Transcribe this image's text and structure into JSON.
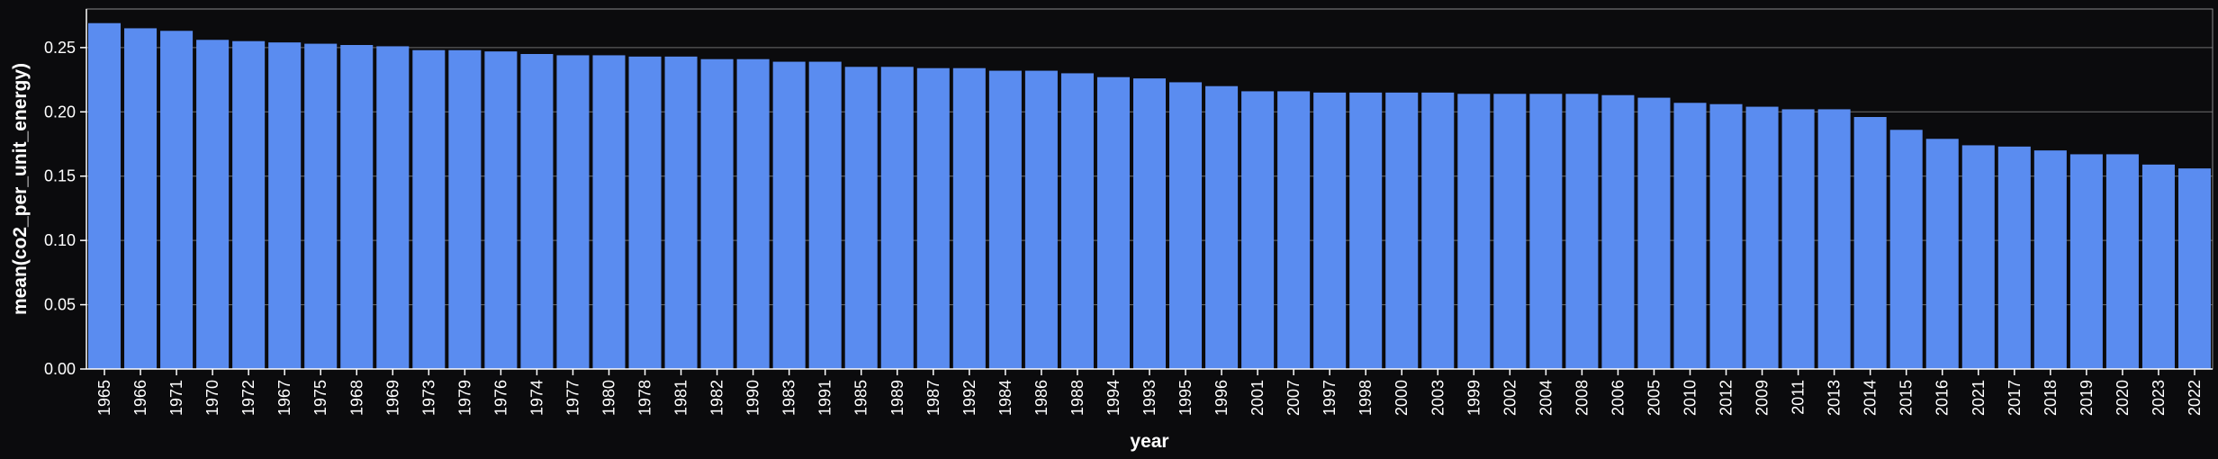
{
  "chart_data": {
    "type": "bar",
    "xlabel": "year",
    "ylabel": "mean(co2_per_unit_energy)",
    "ylim": [
      0,
      0.28
    ],
    "yticks": [
      0,
      0.05,
      0.1,
      0.15,
      0.2,
      0.25
    ],
    "ytick_labels": [
      "0.00",
      "0.05",
      "0.10",
      "0.15",
      "0.20",
      "0.25"
    ],
    "grid": true,
    "bar_color": "#5a8cf0",
    "background_color": "#0b0b0d",
    "categories": [
      "1965",
      "1966",
      "1971",
      "1970",
      "1972",
      "1967",
      "1975",
      "1968",
      "1969",
      "1973",
      "1979",
      "1976",
      "1974",
      "1977",
      "1980",
      "1978",
      "1981",
      "1982",
      "1990",
      "1983",
      "1991",
      "1985",
      "1989",
      "1987",
      "1992",
      "1984",
      "1986",
      "1988",
      "1994",
      "1993",
      "1995",
      "1996",
      "2001",
      "2007",
      "1997",
      "1998",
      "2000",
      "2003",
      "1999",
      "2002",
      "2004",
      "2008",
      "2006",
      "2005",
      "2010",
      "2012",
      "2009",
      "2011",
      "2013",
      "2014",
      "2015",
      "2016",
      "2021",
      "2017",
      "2018",
      "2019",
      "2020",
      "2023",
      "2022"
    ],
    "values": [
      0.269,
      0.265,
      0.263,
      0.256,
      0.255,
      0.254,
      0.253,
      0.252,
      0.251,
      0.248,
      0.248,
      0.247,
      0.245,
      0.244,
      0.244,
      0.243,
      0.243,
      0.241,
      0.241,
      0.239,
      0.239,
      0.235,
      0.235,
      0.234,
      0.234,
      0.232,
      0.232,
      0.23,
      0.227,
      0.226,
      0.223,
      0.22,
      0.216,
      0.216,
      0.215,
      0.215,
      0.215,
      0.215,
      0.214,
      0.214,
      0.214,
      0.214,
      0.213,
      0.211,
      0.207,
      0.206,
      0.204,
      0.202,
      0.202,
      0.196,
      0.186,
      0.179,
      0.174,
      0.173,
      0.17,
      0.167,
      0.167,
      0.159,
      0.156
    ]
  }
}
